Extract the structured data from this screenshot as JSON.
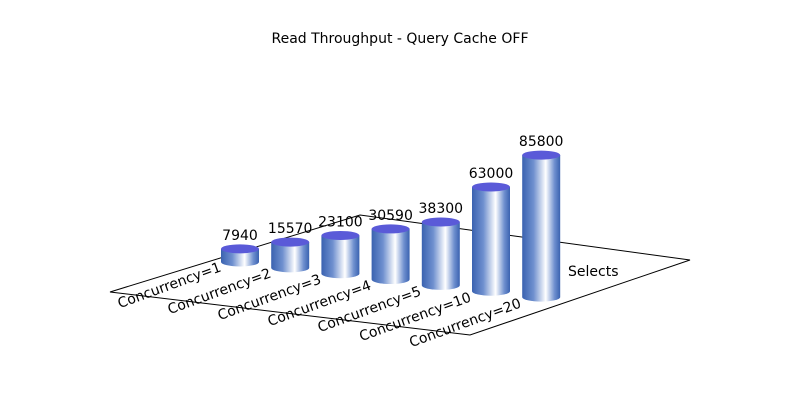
{
  "chart_data": {
    "type": "bar",
    "title": "Read Throughput - Query Cache OFF",
    "categories": [
      "Concurrency=1",
      "Concurrency=2",
      "Concurrency=3",
      "Concurrency=4",
      "Concurrency=5",
      "Concurrency=10",
      "Concurrency=20"
    ],
    "series": [
      {
        "name": "Selects",
        "color": "#3d6bbf",
        "values": [
          7940,
          15570,
          23100,
          30590,
          38300,
          63000,
          85800
        ]
      }
    ]
  }
}
